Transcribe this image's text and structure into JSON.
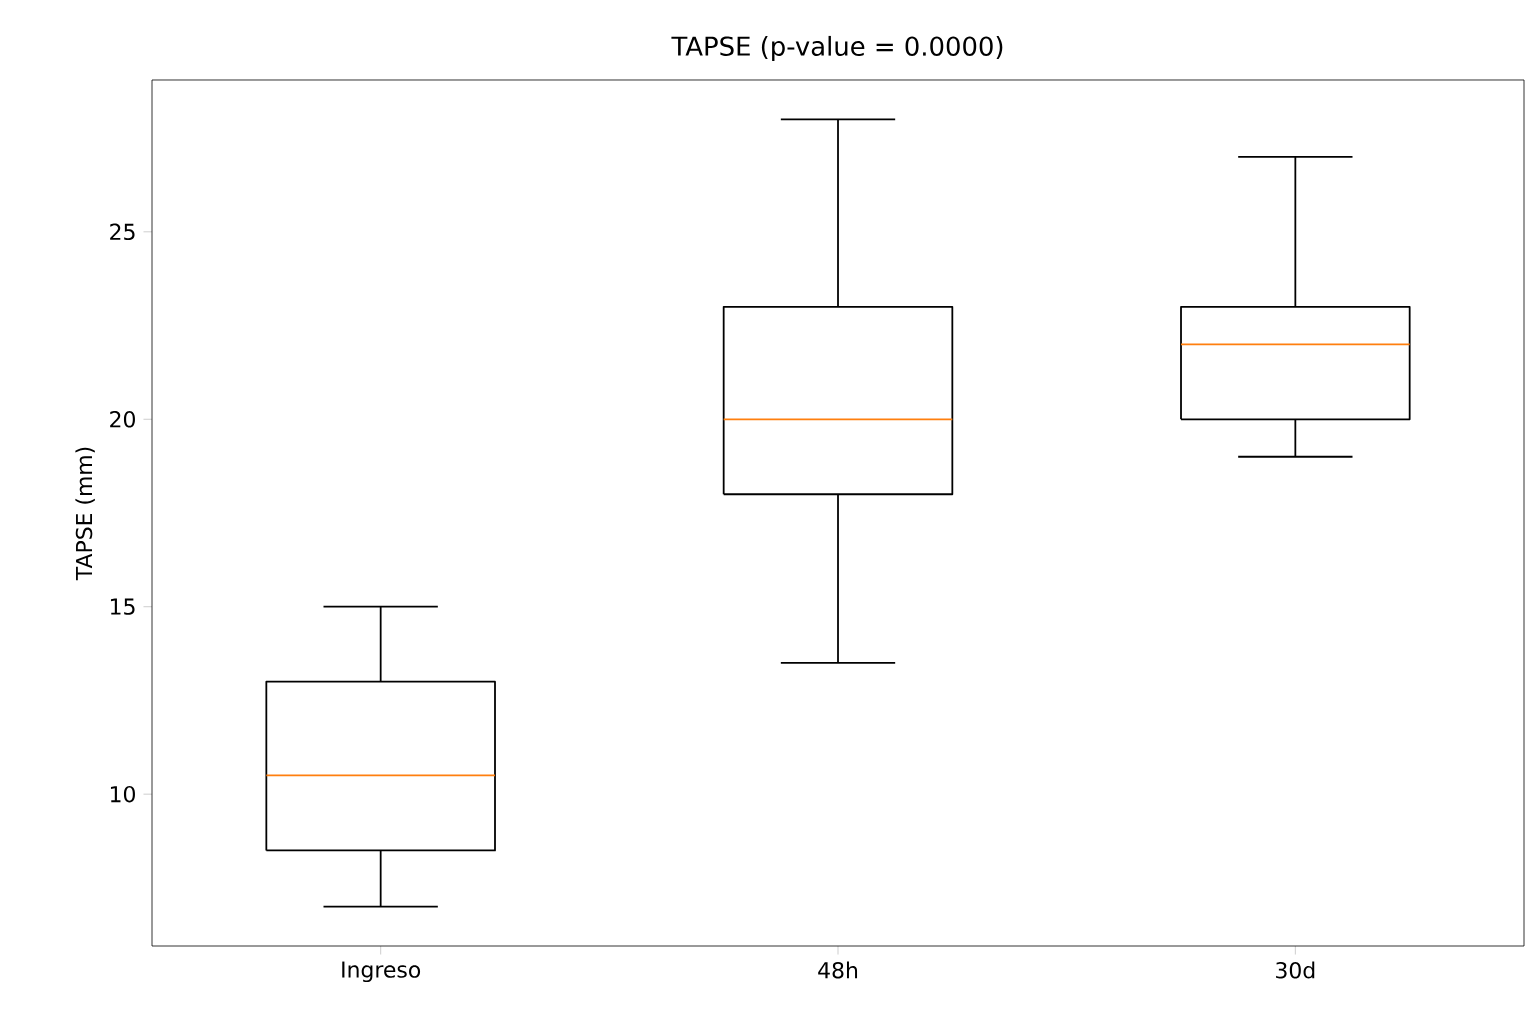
{
  "chart_data": {
    "type": "box",
    "title": "TAPSE (p-value = 0.0000)",
    "ylabel": "TAPSE (mm)",
    "categories": [
      "Ingreso",
      "48h",
      "30d"
    ],
    "boxes": [
      {
        "low": 7,
        "q1": 8.5,
        "median": 10.5,
        "q3": 13,
        "high": 15
      },
      {
        "low": 13.5,
        "q1": 18,
        "median": 20,
        "q3": 23,
        "high": 28
      },
      {
        "low": 19,
        "q1": 20,
        "median": 22,
        "q3": 23,
        "high": 27
      }
    ],
    "ylim": [
      5.95,
      29.05
    ],
    "yticks": [
      10,
      15,
      20,
      25
    ],
    "grid": false
  }
}
